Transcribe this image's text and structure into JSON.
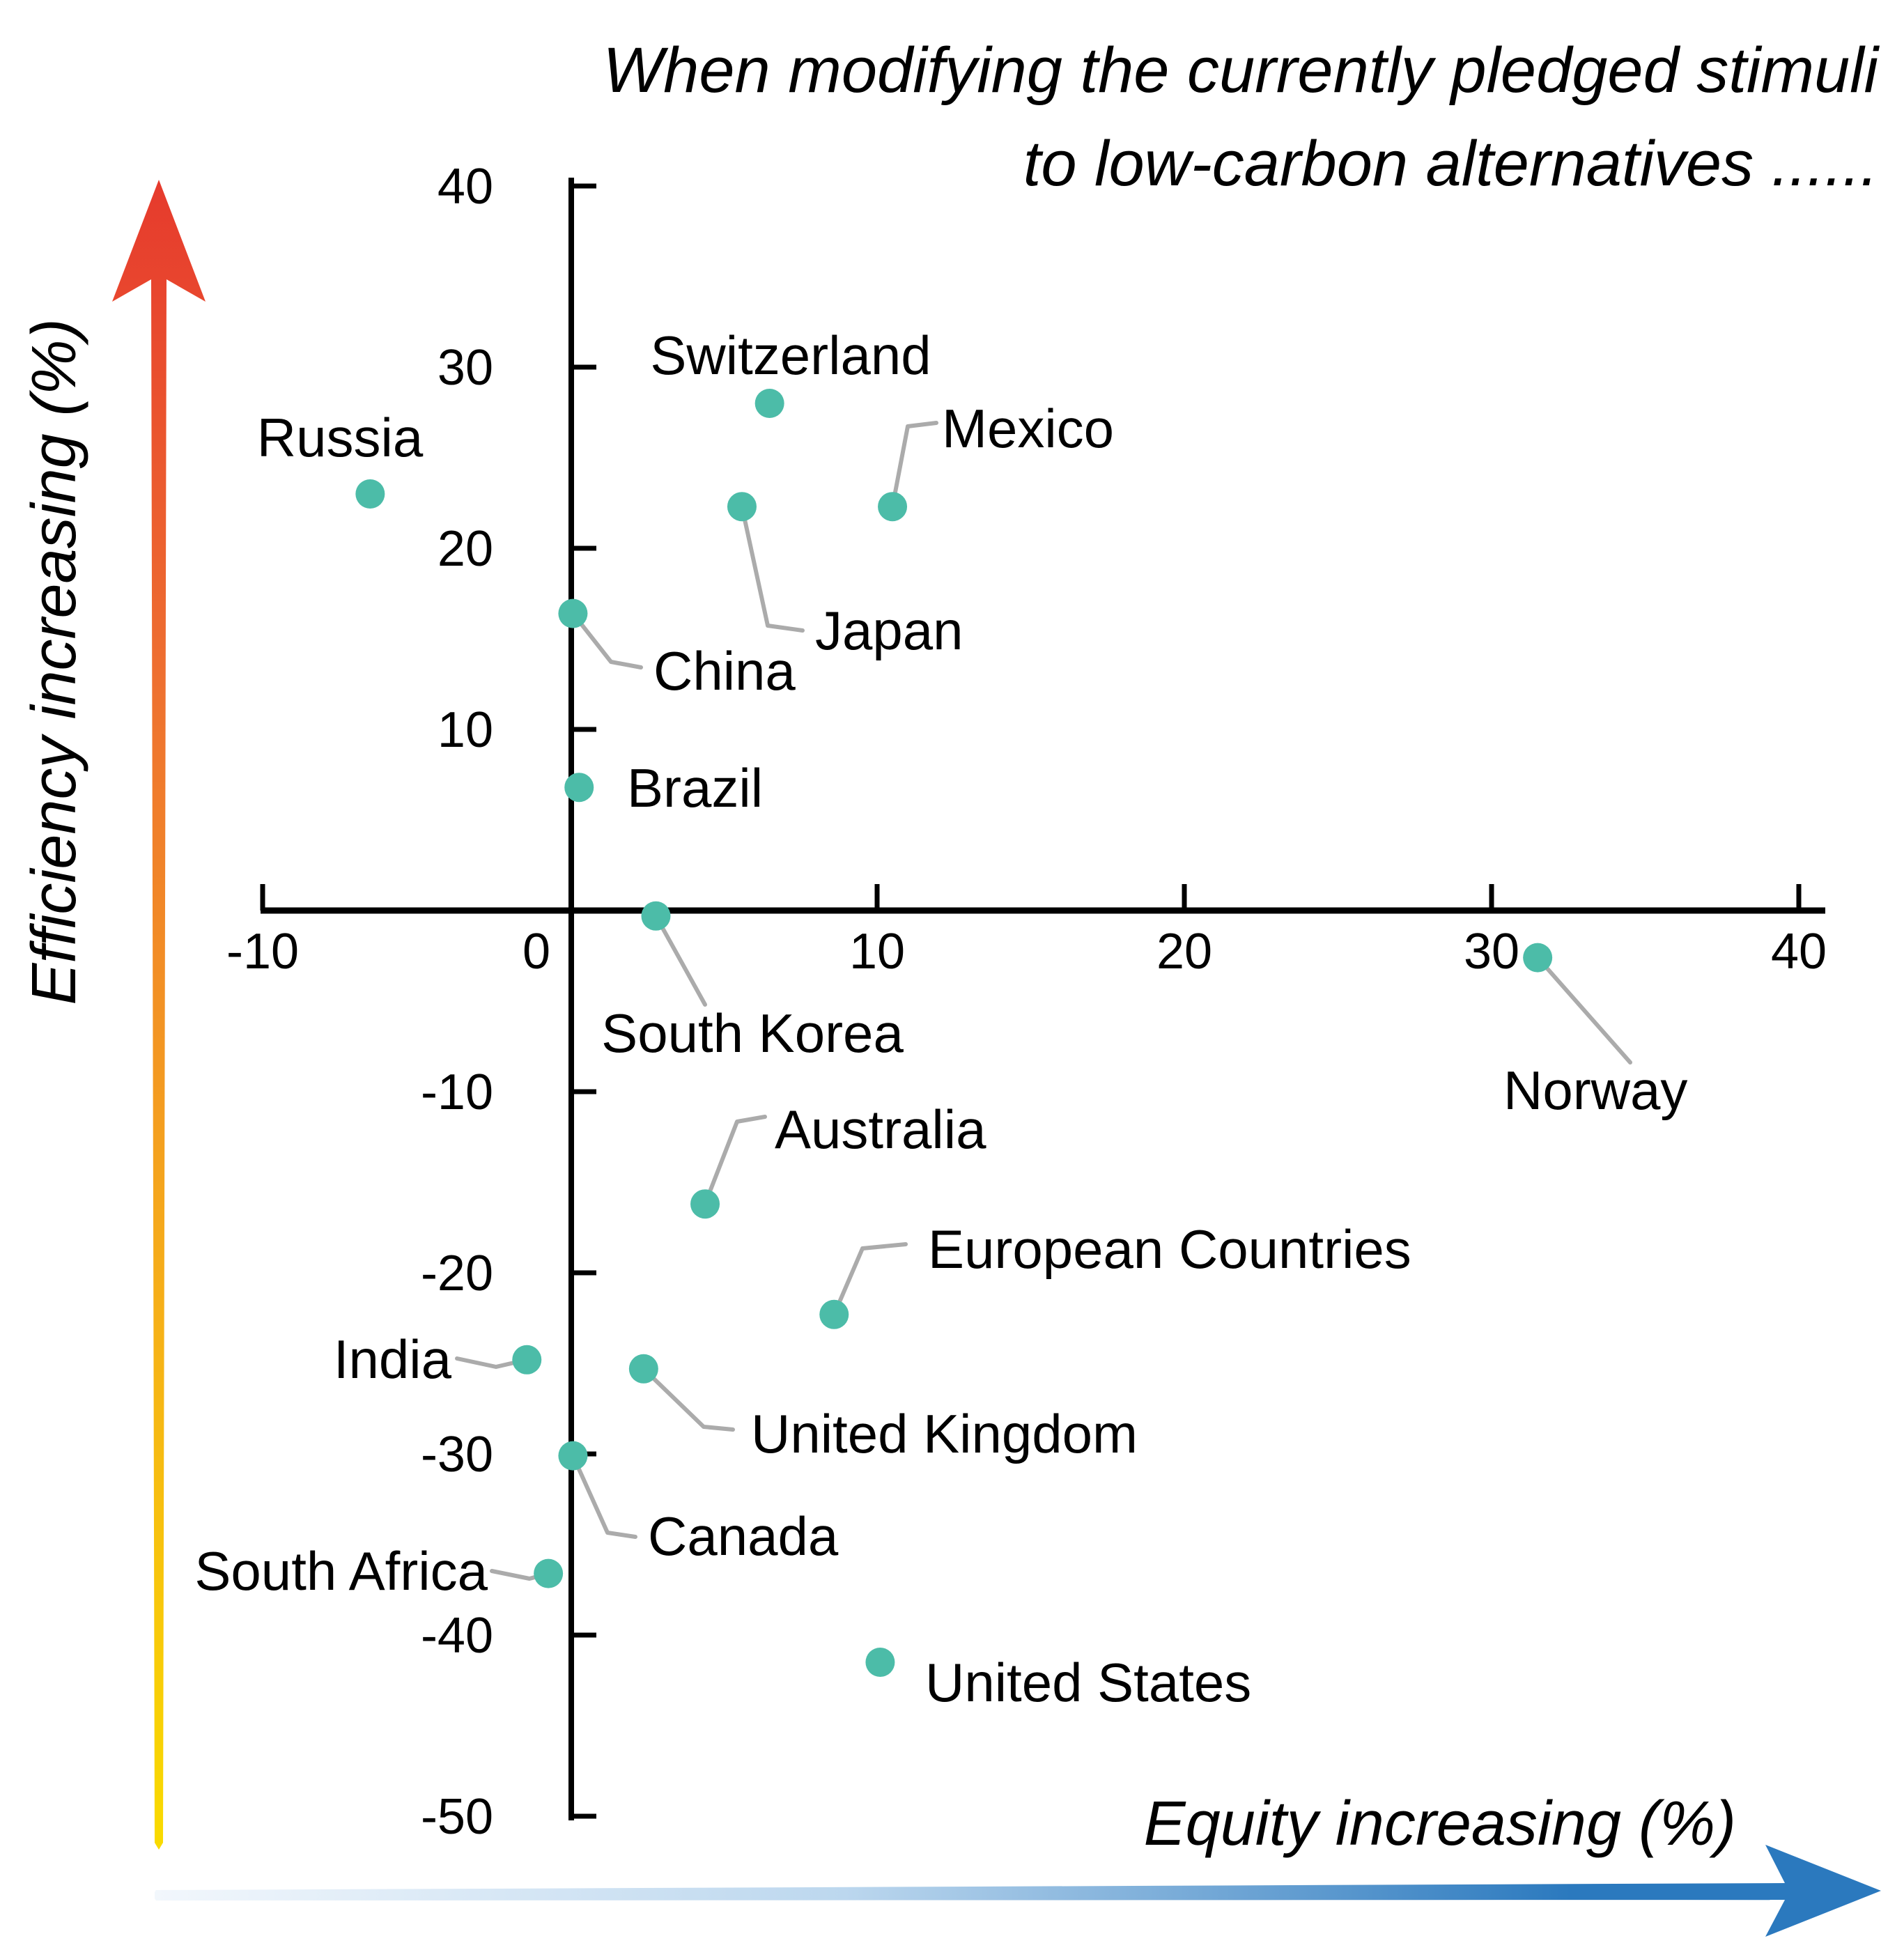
{
  "title": {
    "line1": "When modifying the currently pledged stimuli",
    "line2": "to low-carbon alternatives ......"
  },
  "axis_arrows": {
    "y_label": "Efficiency increasing (%)",
    "x_label": "Equity increasing (%)"
  },
  "colors": {
    "point": "#4CBCA8",
    "leader_line": "#ABABAB",
    "axis": "#000000",
    "text": "#000000",
    "efficiency_arrow_top": "#E63A2D",
    "efficiency_arrow_mid_orange": "#EE7030",
    "efficiency_arrow_mid_amber": "#F5A81C",
    "efficiency_arrow_bottom": "#F9DB00",
    "equity_arrow_right": "#2B79BE",
    "equity_arrow_mid": "#BCD7EE",
    "equity_arrow_left": "#F2F7FC"
  },
  "chart_data": {
    "type": "scatter",
    "title": "When modifying the currently pledged stimuli to low-carbon alternatives ......",
    "xlabel": "Equity increasing (%)",
    "ylabel": "Efficiency increasing (%)",
    "xlim": [
      -10,
      40
    ],
    "ylim": [
      -50,
      40
    ],
    "x_ticks": [
      -10,
      0,
      10,
      20,
      30,
      40
    ],
    "y_ticks": [
      40,
      30,
      20,
      10,
      -10,
      -20,
      -30,
      -40,
      -50
    ],
    "grid": false,
    "legend": "none",
    "points": [
      {
        "label": "Russia",
        "x": -6.5,
        "y": 23.0
      },
      {
        "label": "Switzerland",
        "x": 6.5,
        "y": 28.0
      },
      {
        "label": "Japan",
        "x": 5.6,
        "y": 22.3
      },
      {
        "label": "Mexico",
        "x": 10.5,
        "y": 22.3
      },
      {
        "label": "China",
        "x": 0.1,
        "y": 16.4
      },
      {
        "label": "Brazil",
        "x": 0.3,
        "y": 6.8
      },
      {
        "label": "South Korea",
        "x": 2.8,
        "y": -0.3
      },
      {
        "label": "Norway",
        "x": 31.5,
        "y": -2.6
      },
      {
        "label": "Australia",
        "x": 4.4,
        "y": -16.2
      },
      {
        "label": "European Countries",
        "x": 8.6,
        "y": -22.3
      },
      {
        "label": "India",
        "x": -1.4,
        "y": -24.8
      },
      {
        "label": "United Kingdom",
        "x": 2.4,
        "y": -25.3
      },
      {
        "label": "Canada",
        "x": 0.1,
        "y": -30.1
      },
      {
        "label": "South Africa",
        "x": -0.7,
        "y": -36.6
      },
      {
        "label": "United States",
        "x": 10.1,
        "y": -41.5
      }
    ]
  }
}
